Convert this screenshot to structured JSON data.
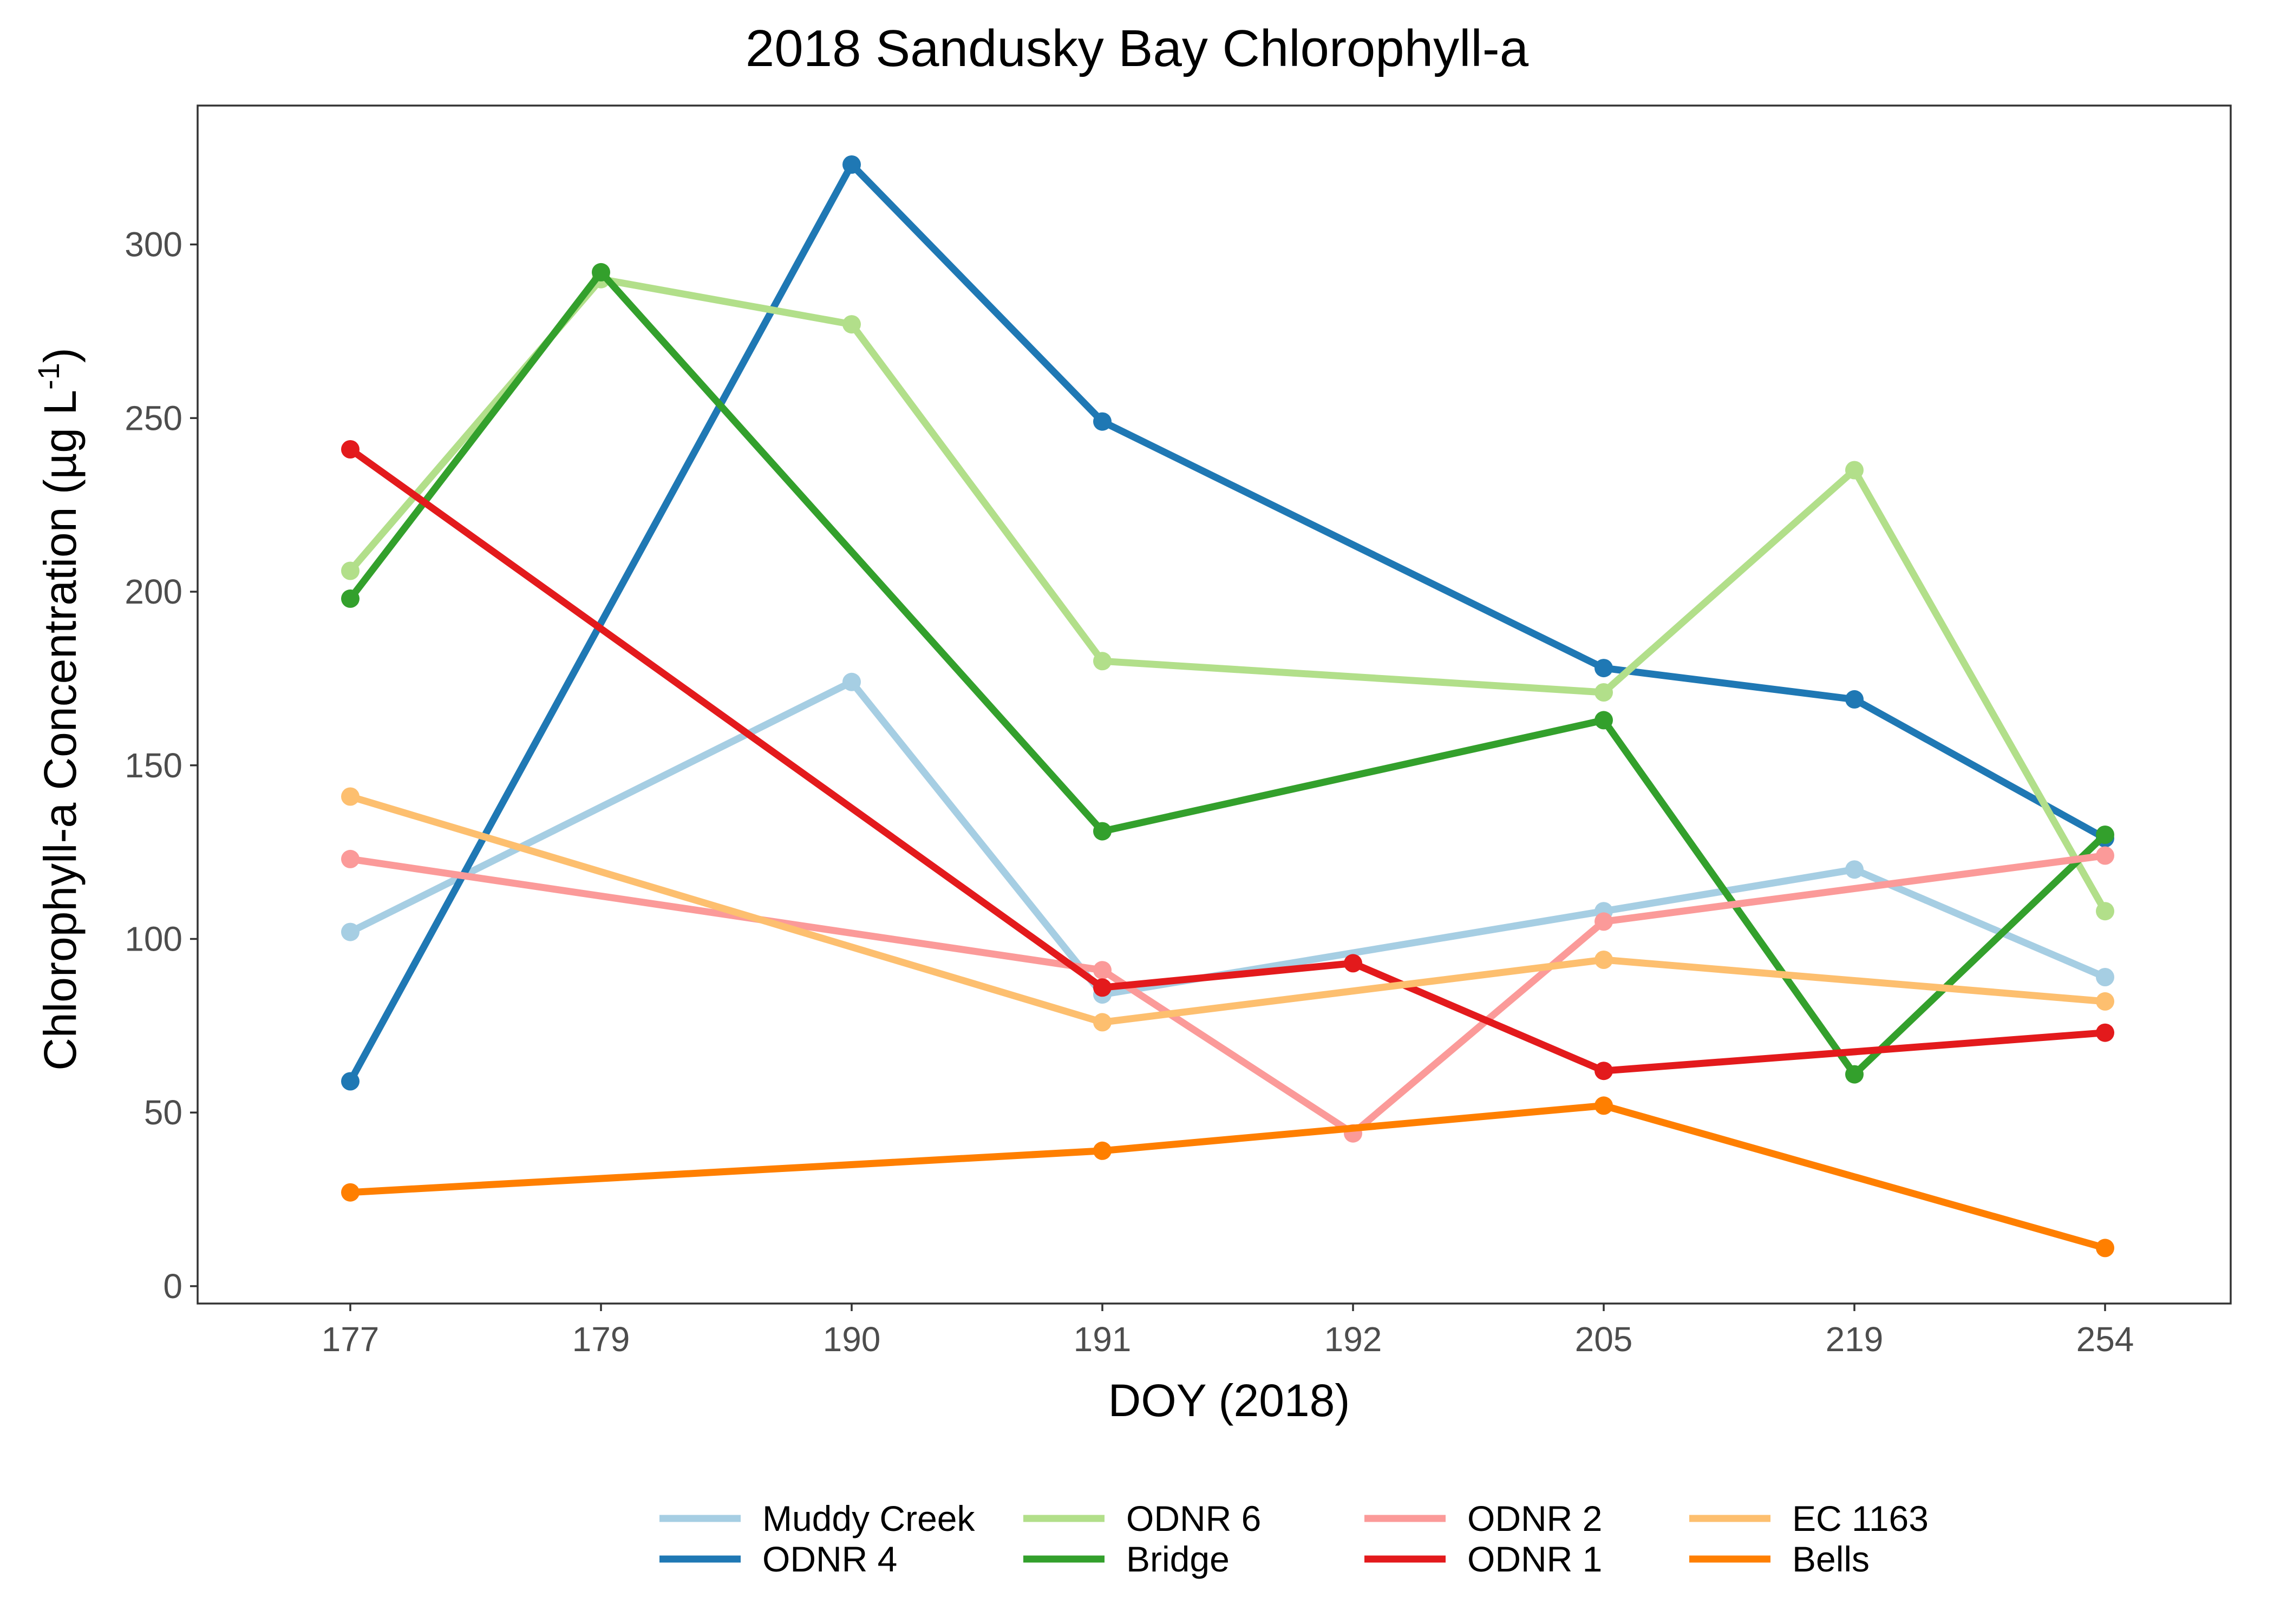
{
  "chart_data": {
    "type": "line",
    "title": "2018 Sandusky Bay Chlorophyll-a",
    "xlabel": "DOY (2018)",
    "ylabel": {
      "main": "Chlorophyll-a Concentration (µg L",
      "superscript": "-1",
      "close": ")"
    },
    "categories": [
      "177",
      "179",
      "190",
      "191",
      "192",
      "205",
      "219",
      "254"
    ],
    "ylim": [
      -5,
      340
    ],
    "yticks": [
      0,
      50,
      100,
      150,
      200,
      250,
      300
    ],
    "grid": false,
    "legend_position": "bottom",
    "series": [
      {
        "name": "Muddy Creek",
        "color": "#a6cee3",
        "points": [
          [
            "177",
            102
          ],
          [
            "190",
            174
          ],
          [
            "191",
            84
          ],
          [
            "205",
            108
          ],
          [
            "219",
            120
          ],
          [
            "254",
            89
          ]
        ]
      },
      {
        "name": "ODNR 4",
        "color": "#1f78b4",
        "points": [
          [
            "177",
            59
          ],
          [
            "190",
            323
          ],
          [
            "191",
            249
          ],
          [
            "205",
            178
          ],
          [
            "219",
            169
          ],
          [
            "254",
            129
          ]
        ]
      },
      {
        "name": "ODNR 6",
        "color": "#b2df8a",
        "points": [
          [
            "177",
            206
          ],
          [
            "179",
            290
          ],
          [
            "190",
            277
          ],
          [
            "191",
            180
          ],
          [
            "205",
            171
          ],
          [
            "219",
            235
          ],
          [
            "254",
            108
          ]
        ]
      },
      {
        "name": "Bridge",
        "color": "#33a02c",
        "points": [
          [
            "177",
            198
          ],
          [
            "179",
            292
          ],
          [
            "191",
            131
          ],
          [
            "205",
            163
          ],
          [
            "219",
            61
          ],
          [
            "254",
            130
          ]
        ]
      },
      {
        "name": "ODNR 2",
        "color": "#fb9a99",
        "points": [
          [
            "177",
            123
          ],
          [
            "191",
            91
          ],
          [
            "192",
            44
          ],
          [
            "205",
            105
          ],
          [
            "254",
            124
          ]
        ]
      },
      {
        "name": "ODNR 1",
        "color": "#e31a1c",
        "points": [
          [
            "177",
            241
          ],
          [
            "191",
            86
          ],
          [
            "192",
            93
          ],
          [
            "205",
            62
          ],
          [
            "254",
            73
          ]
        ]
      },
      {
        "name": "EC 1163",
        "color": "#fdbf6f",
        "points": [
          [
            "177",
            141
          ],
          [
            "191",
            76
          ],
          [
            "205",
            94
          ],
          [
            "254",
            82
          ]
        ]
      },
      {
        "name": "Bells",
        "color": "#ff7f00",
        "points": [
          [
            "177",
            27
          ],
          [
            "191",
            39
          ],
          [
            "205",
            52
          ],
          [
            "254",
            11
          ]
        ]
      }
    ]
  }
}
